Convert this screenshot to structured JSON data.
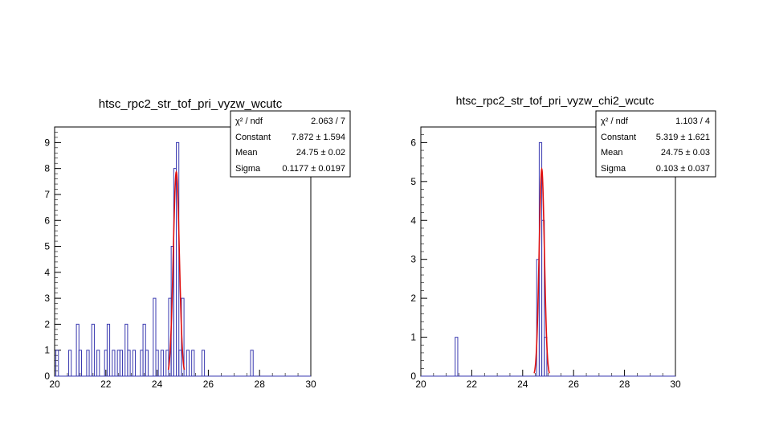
{
  "chart_data": [
    {
      "type": "histogram",
      "title": "htsc_rpc2_str_tof_pri_vyzw_wcutc",
      "xlim": [
        20,
        30
      ],
      "ylim": [
        0,
        9.6
      ],
      "bin_width": 0.1,
      "x_ticks": [
        "20",
        "22",
        "24",
        "26",
        "28",
        "30"
      ],
      "y_ticks": [
        "0",
        "1",
        "2",
        "3",
        "4",
        "5",
        "6",
        "7",
        "8",
        "9"
      ],
      "colors": {
        "hist": "#3a3ab0",
        "fit": "#e01010",
        "axis": "#000000"
      },
      "bins": [
        {
          "x": 20.1,
          "y": 1
        },
        {
          "x": 20.6,
          "y": 1
        },
        {
          "x": 20.9,
          "y": 2
        },
        {
          "x": 21.0,
          "y": 1
        },
        {
          "x": 21.3,
          "y": 1
        },
        {
          "x": 21.5,
          "y": 2
        },
        {
          "x": 21.7,
          "y": 1
        },
        {
          "x": 22.0,
          "y": 1
        },
        {
          "x": 22.1,
          "y": 2
        },
        {
          "x": 22.3,
          "y": 1
        },
        {
          "x": 22.5,
          "y": 1
        },
        {
          "x": 22.6,
          "y": 1
        },
        {
          "x": 22.8,
          "y": 2
        },
        {
          "x": 22.9,
          "y": 1
        },
        {
          "x": 23.1,
          "y": 1
        },
        {
          "x": 23.4,
          "y": 1
        },
        {
          "x": 23.5,
          "y": 2
        },
        {
          "x": 23.6,
          "y": 1
        },
        {
          "x": 23.9,
          "y": 3
        },
        {
          "x": 24.0,
          "y": 1
        },
        {
          "x": 24.2,
          "y": 1
        },
        {
          "x": 24.4,
          "y": 1
        },
        {
          "x": 24.5,
          "y": 3
        },
        {
          "x": 24.6,
          "y": 5
        },
        {
          "x": 24.7,
          "y": 8
        },
        {
          "x": 24.8,
          "y": 9
        },
        {
          "x": 24.9,
          "y": 1
        },
        {
          "x": 25.0,
          "y": 3
        },
        {
          "x": 25.2,
          "y": 1
        },
        {
          "x": 25.4,
          "y": 1
        },
        {
          "x": 25.8,
          "y": 1
        },
        {
          "x": 27.7,
          "y": 1
        }
      ],
      "fit": {
        "constant": 7.872,
        "mean": 24.75,
        "sigma": 0.1177,
        "range": [
          24.44,
          25.06
        ]
      },
      "stats": [
        {
          "label": "χ² / ndf",
          "value": "2.063 / 7"
        },
        {
          "label": "Constant",
          "value": "7.872 ± 1.594"
        },
        {
          "label": "Mean",
          "value": "24.75 ± 0.02"
        },
        {
          "label": "Sigma",
          "value": "0.1177 ± 0.0197"
        }
      ]
    },
    {
      "type": "histogram",
      "title": "htsc_rpc2_str_tof_pri_vyzw_chi2_wcutc",
      "xlim": [
        20,
        30
      ],
      "ylim": [
        0,
        6.4
      ],
      "bin_width": 0.1,
      "x_ticks": [
        "20",
        "22",
        "24",
        "26",
        "28",
        "30"
      ],
      "y_ticks": [
        "0",
        "1",
        "2",
        "3",
        "4",
        "5",
        "6"
      ],
      "colors": {
        "hist": "#3a3ab0",
        "fit": "#e01010",
        "axis": "#000000"
      },
      "bins": [
        {
          "x": 21.4,
          "y": 1
        },
        {
          "x": 24.6,
          "y": 3
        },
        {
          "x": 24.7,
          "y": 6
        },
        {
          "x": 24.8,
          "y": 4
        },
        {
          "x": 24.9,
          "y": 1
        }
      ],
      "fit": {
        "constant": 5.319,
        "mean": 24.75,
        "sigma": 0.103,
        "range": [
          24.45,
          25.05
        ]
      },
      "stats": [
        {
          "label": "χ² / ndf",
          "value": "1.103 / 4"
        },
        {
          "label": "Constant",
          "value": "5.319 ± 1.621"
        },
        {
          "label": "Mean",
          "value": "24.75 ± 0.03"
        },
        {
          "label": "Sigma",
          "value": "0.103 ± 0.037"
        }
      ]
    }
  ]
}
